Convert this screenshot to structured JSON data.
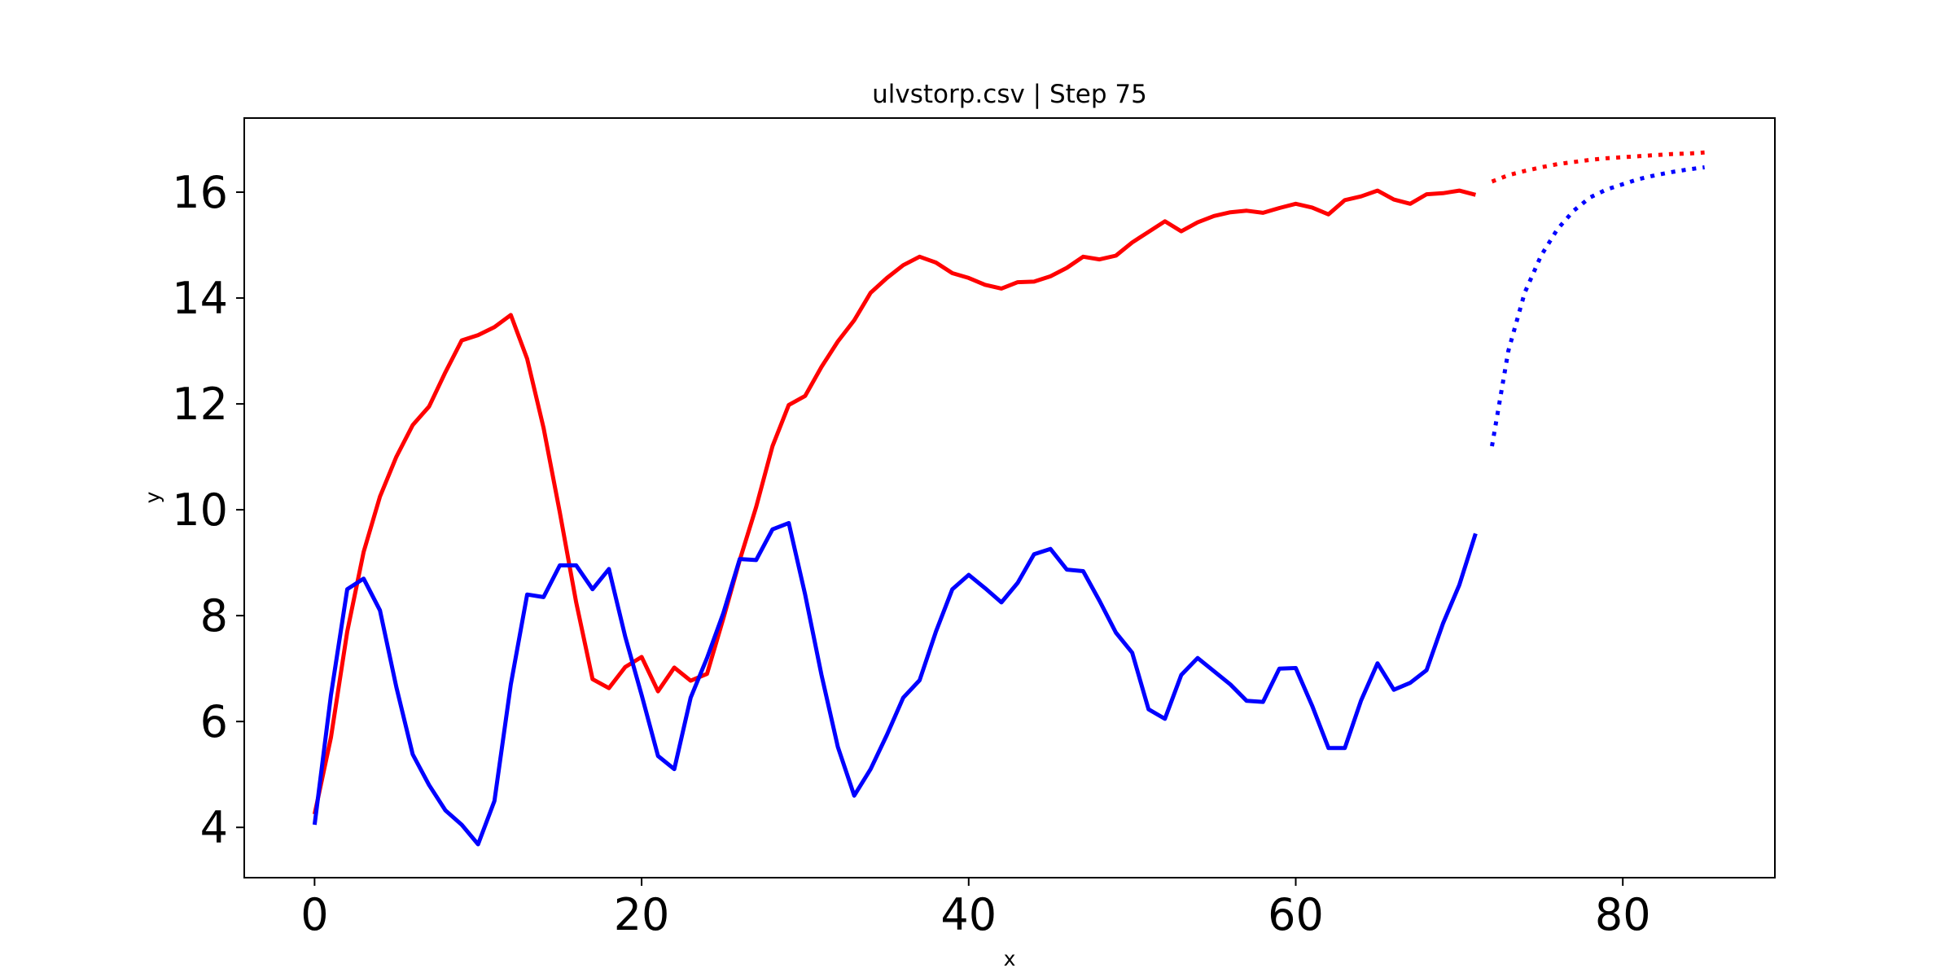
{
  "chart_data": {
    "type": "line",
    "title": "ulvstorp.csv | Step 75",
    "xlabel": "x",
    "ylabel": "y",
    "xlim": [
      -4.3,
      89.3
    ],
    "ylim": [
      3.05,
      17.4
    ],
    "xticks": [
      0,
      20,
      40,
      60,
      80
    ],
    "yticks": [
      4,
      6,
      8,
      10,
      12,
      14,
      16
    ],
    "grid": false,
    "legend": "none",
    "series": [
      {
        "color": "#ff0000",
        "style": "solid",
        "x": [
          0,
          1,
          2,
          3,
          4,
          5,
          6,
          7,
          8,
          9,
          10,
          11,
          12,
          13,
          14,
          15,
          16,
          17,
          18,
          19,
          20,
          21,
          22,
          23,
          24,
          25,
          26,
          27,
          28,
          29,
          30,
          31,
          32,
          33,
          34,
          35,
          36,
          37,
          38,
          39,
          40,
          41,
          42,
          43,
          44,
          45,
          46,
          47,
          48,
          49,
          50,
          51,
          52,
          53,
          54,
          55,
          56,
          57,
          58,
          59,
          60,
          61,
          62,
          63,
          64,
          65,
          66,
          67,
          68,
          69,
          70,
          71
        ],
        "values": [
          4.25,
          5.7,
          7.7,
          9.2,
          10.25,
          11.0,
          11.6,
          11.95,
          12.6,
          13.2,
          13.3,
          13.45,
          13.68,
          12.85,
          11.55,
          9.95,
          8.25,
          6.8,
          6.63,
          7.03,
          7.22,
          6.57,
          7.02,
          6.77,
          6.9,
          7.95,
          9.05,
          10.05,
          11.2,
          11.98,
          12.15,
          12.7,
          13.18,
          13.58,
          14.1,
          14.38,
          14.62,
          14.78,
          14.67,
          14.47,
          14.38,
          14.25,
          14.18,
          14.3,
          14.31,
          14.41,
          14.57,
          14.78,
          14.73,
          14.8,
          15.05,
          15.25,
          15.45,
          15.26,
          15.43,
          15.55,
          15.62,
          15.65,
          15.61,
          15.7,
          15.78,
          15.71,
          15.58,
          15.85,
          15.92,
          16.03,
          15.86,
          15.78,
          15.96,
          15.98,
          16.03,
          15.95
        ]
      },
      {
        "color": "#0000ff",
        "style": "solid",
        "x": [
          0,
          1,
          2,
          3,
          4,
          5,
          6,
          7,
          8,
          9,
          10,
          11,
          12,
          13,
          14,
          15,
          16,
          17,
          18,
          19,
          20,
          21,
          22,
          23,
          24,
          25,
          26,
          27,
          28,
          29,
          30,
          31,
          32,
          33,
          34,
          35,
          36,
          37,
          38,
          39,
          40,
          41,
          42,
          43,
          44,
          45,
          46,
          47,
          48,
          49,
          50,
          51,
          52,
          53,
          54,
          55,
          56,
          57,
          58,
          59,
          60,
          61,
          62,
          63,
          64,
          65,
          66,
          67,
          68,
          69,
          70,
          71
        ],
        "values": [
          4.05,
          6.5,
          8.5,
          8.7,
          8.1,
          6.65,
          5.38,
          4.8,
          4.32,
          4.05,
          3.68,
          4.5,
          6.7,
          8.4,
          8.35,
          8.95,
          8.95,
          8.5,
          8.88,
          7.6,
          6.5,
          5.35,
          5.1,
          6.45,
          7.2,
          8.05,
          9.07,
          9.05,
          9.63,
          9.75,
          8.4,
          6.88,
          5.52,
          4.6,
          5.1,
          5.75,
          6.45,
          6.78,
          7.7,
          8.5,
          8.77,
          8.52,
          8.25,
          8.62,
          9.16,
          9.26,
          8.87,
          8.84,
          8.28,
          7.68,
          7.3,
          6.23,
          6.05,
          6.88,
          7.2,
          6.95,
          6.7,
          6.39,
          6.37,
          7.0,
          7.01,
          6.3,
          5.5,
          5.5,
          6.4,
          7.1,
          6.6,
          6.73,
          6.97,
          7.85,
          8.58,
          9.55
        ]
      },
      {
        "color": "#ff0000",
        "style": "dotted",
        "x": [
          72,
          73,
          74,
          75,
          76,
          77,
          78,
          79,
          80,
          81,
          82,
          83,
          84,
          85
        ],
        "values": [
          16.2,
          16.32,
          16.4,
          16.47,
          16.53,
          16.57,
          16.61,
          16.64,
          16.66,
          16.68,
          16.7,
          16.72,
          16.73,
          16.75
        ]
      },
      {
        "color": "#0000ff",
        "style": "dotted",
        "x": [
          72,
          73,
          74,
          75,
          76,
          77,
          78,
          79,
          80,
          81,
          82,
          83,
          84,
          85
        ],
        "values": [
          11.2,
          13.0,
          14.1,
          14.8,
          15.3,
          15.65,
          15.9,
          16.05,
          16.15,
          16.25,
          16.32,
          16.38,
          16.43,
          16.47
        ]
      }
    ]
  }
}
